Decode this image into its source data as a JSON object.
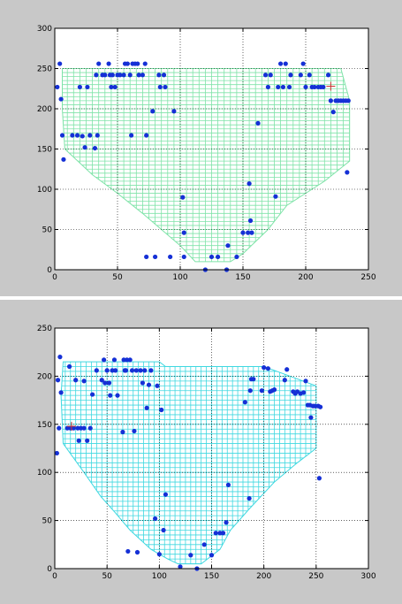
{
  "chart_data": [
    {
      "type": "scatter",
      "xlim": [
        0,
        250
      ],
      "ylim": [
        0,
        300
      ],
      "xticks": [
        0,
        50,
        100,
        150,
        200,
        250
      ],
      "yticks": [
        0,
        50,
        100,
        150,
        200,
        250,
        300
      ],
      "grid": true,
      "colors": {
        "grid_mesh": "#7fe3a8",
        "points": "#1530d6",
        "marker": "#cc3333",
        "figure_bg": "#c8c8c8",
        "axes_bg": "#ffffff"
      },
      "mesh_outline": [
        [
          6,
          250
        ],
        [
          228,
          250
        ],
        [
          235,
          210
        ],
        [
          235,
          135
        ],
        [
          215,
          110
        ],
        [
          185,
          80
        ],
        [
          170,
          50
        ],
        [
          150,
          20
        ],
        [
          140,
          10
        ],
        [
          112,
          10
        ],
        [
          100,
          30
        ],
        [
          85,
          50
        ],
        [
          70,
          70
        ],
        [
          50,
          95
        ],
        [
          30,
          118
        ],
        [
          8,
          150
        ],
        [
          6,
          200
        ]
      ],
      "points": [
        [
          2,
          227
        ],
        [
          4,
          256
        ],
        [
          5,
          212
        ],
        [
          6,
          167
        ],
        [
          7,
          137
        ],
        [
          14,
          167
        ],
        [
          18,
          167
        ],
        [
          22,
          166
        ],
        [
          20,
          227
        ],
        [
          24,
          152
        ],
        [
          28,
          167
        ],
        [
          26,
          227
        ],
        [
          32,
          151
        ],
        [
          33,
          242
        ],
        [
          34,
          167
        ],
        [
          35,
          256
        ],
        [
          38,
          242
        ],
        [
          40,
          242
        ],
        [
          43,
          256
        ],
        [
          44,
          242
        ],
        [
          45,
          227
        ],
        [
          46,
          242
        ],
        [
          48,
          227
        ],
        [
          50,
          242
        ],
        [
          52,
          242
        ],
        [
          55,
          242
        ],
        [
          56,
          256
        ],
        [
          58,
          256
        ],
        [
          60,
          242
        ],
        [
          61,
          167
        ],
        [
          62,
          256
        ],
        [
          64,
          256
        ],
        [
          66,
          256
        ],
        [
          67,
          242
        ],
        [
          70,
          242
        ],
        [
          72,
          256
        ],
        [
          73,
          167
        ],
        [
          73,
          16
        ],
        [
          78,
          197
        ],
        [
          80,
          16
        ],
        [
          83,
          242
        ],
        [
          84,
          227
        ],
        [
          87,
          242
        ],
        [
          88,
          227
        ],
        [
          92,
          16
        ],
        [
          95,
          197
        ],
        [
          102,
          90
        ],
        [
          103,
          46
        ],
        [
          103,
          16
        ],
        [
          120,
          0
        ],
        [
          125,
          16
        ],
        [
          130,
          16
        ],
        [
          137,
          0
        ],
        [
          138,
          30
        ],
        [
          145,
          16
        ],
        [
          150,
          46
        ],
        [
          154,
          46
        ],
        [
          155,
          107
        ],
        [
          156,
          61
        ],
        [
          157,
          46
        ],
        [
          162,
          182
        ],
        [
          168,
          242
        ],
        [
          170,
          227
        ],
        [
          172,
          242
        ],
        [
          176,
          91
        ],
        [
          178,
          227
        ],
        [
          180,
          256
        ],
        [
          182,
          227
        ],
        [
          184,
          256
        ],
        [
          187,
          227
        ],
        [
          188,
          242
        ],
        [
          196,
          242
        ],
        [
          198,
          256
        ],
        [
          200,
          227
        ],
        [
          203,
          242
        ],
        [
          205,
          227
        ],
        [
          207,
          227
        ],
        [
          210,
          227
        ],
        [
          212,
          227
        ],
        [
          214,
          227
        ],
        [
          218,
          242
        ],
        [
          220,
          210
        ],
        [
          222,
          196
        ],
        [
          224,
          210
        ],
        [
          226,
          210
        ],
        [
          228,
          210
        ],
        [
          230,
          210
        ],
        [
          232,
          210
        ],
        [
          234,
          210
        ],
        [
          233,
          121
        ]
      ],
      "highlight_marker": [
        220,
        228
      ]
    },
    {
      "type": "scatter",
      "xlim": [
        0,
        300
      ],
      "ylim": [
        0,
        250
      ],
      "xticks": [
        0,
        50,
        100,
        150,
        200,
        250,
        300
      ],
      "yticks": [
        0,
        50,
        100,
        150,
        200,
        250
      ],
      "grid": true,
      "colors": {
        "grid_mesh": "#3fd8e0",
        "points": "#1530d6",
        "marker": "#cc3333",
        "figure_bg": "#c8c8c8",
        "axes_bg": "#ffffff"
      },
      "mesh_outline": [
        [
          8,
          215
        ],
        [
          100,
          215
        ],
        [
          106,
          210
        ],
        [
          200,
          210
        ],
        [
          250,
          190
        ],
        [
          250,
          125
        ],
        [
          232,
          110
        ],
        [
          210,
          90
        ],
        [
          186,
          62
        ],
        [
          168,
          40
        ],
        [
          158,
          20
        ],
        [
          140,
          5
        ],
        [
          118,
          5
        ],
        [
          108,
          10
        ],
        [
          92,
          20
        ],
        [
          72,
          40
        ],
        [
          58,
          58
        ],
        [
          44,
          75
        ],
        [
          28,
          100
        ],
        [
          8,
          130
        ],
        [
          6,
          180
        ]
      ],
      "points": [
        [
          2,
          120
        ],
        [
          3,
          196
        ],
        [
          4,
          146
        ],
        [
          5,
          220
        ],
        [
          6,
          183
        ],
        [
          12,
          146
        ],
        [
          14,
          210
        ],
        [
          15,
          146
        ],
        [
          18,
          146
        ],
        [
          20,
          196
        ],
        [
          22,
          146
        ],
        [
          23,
          133
        ],
        [
          25,
          146
        ],
        [
          28,
          146
        ],
        [
          28,
          195
        ],
        [
          31,
          133
        ],
        [
          34,
          146
        ],
        [
          36,
          181
        ],
        [
          40,
          206
        ],
        [
          45,
          196
        ],
        [
          47,
          217
        ],
        [
          48,
          193
        ],
        [
          50,
          206
        ],
        [
          52,
          193
        ],
        [
          53,
          180
        ],
        [
          55,
          206
        ],
        [
          57,
          217
        ],
        [
          58,
          206
        ],
        [
          60,
          180
        ],
        [
          65,
          142
        ],
        [
          66,
          217
        ],
        [
          67,
          206
        ],
        [
          68,
          206
        ],
        [
          69,
          217
        ],
        [
          70,
          18
        ],
        [
          72,
          217
        ],
        [
          74,
          206
        ],
        [
          76,
          143
        ],
        [
          78,
          206
        ],
        [
          79,
          17
        ],
        [
          82,
          206
        ],
        [
          84,
          193
        ],
        [
          86,
          206
        ],
        [
          88,
          167
        ],
        [
          90,
          191
        ],
        [
          92,
          206
        ],
        [
          96,
          52
        ],
        [
          98,
          190
        ],
        [
          100,
          15
        ],
        [
          102,
          165
        ],
        [
          104,
          40
        ],
        [
          106,
          77
        ],
        [
          120,
          2
        ],
        [
          130,
          14
        ],
        [
          136,
          0
        ],
        [
          143,
          25
        ],
        [
          150,
          14
        ],
        [
          154,
          37
        ],
        [
          158,
          37
        ],
        [
          161,
          37
        ],
        [
          164,
          48
        ],
        [
          166,
          87
        ],
        [
          182,
          173
        ],
        [
          186,
          73
        ],
        [
          187,
          185
        ],
        [
          188,
          197
        ],
        [
          190,
          197
        ],
        [
          198,
          185
        ],
        [
          200,
          209
        ],
        [
          204,
          208
        ],
        [
          206,
          184
        ],
        [
          208,
          185
        ],
        [
          210,
          186
        ],
        [
          220,
          196
        ],
        [
          222,
          207
        ],
        [
          228,
          184
        ],
        [
          230,
          182
        ],
        [
          232,
          184
        ],
        [
          235,
          182
        ],
        [
          238,
          183
        ],
        [
          240,
          195
        ],
        [
          242,
          170
        ],
        [
          244,
          170
        ],
        [
          245,
          157
        ],
        [
          247,
          169
        ],
        [
          249,
          169
        ],
        [
          252,
          169
        ],
        [
          254,
          168
        ],
        [
          253,
          94
        ]
      ],
      "highlight_marker": [
        16,
        148
      ]
    }
  ]
}
